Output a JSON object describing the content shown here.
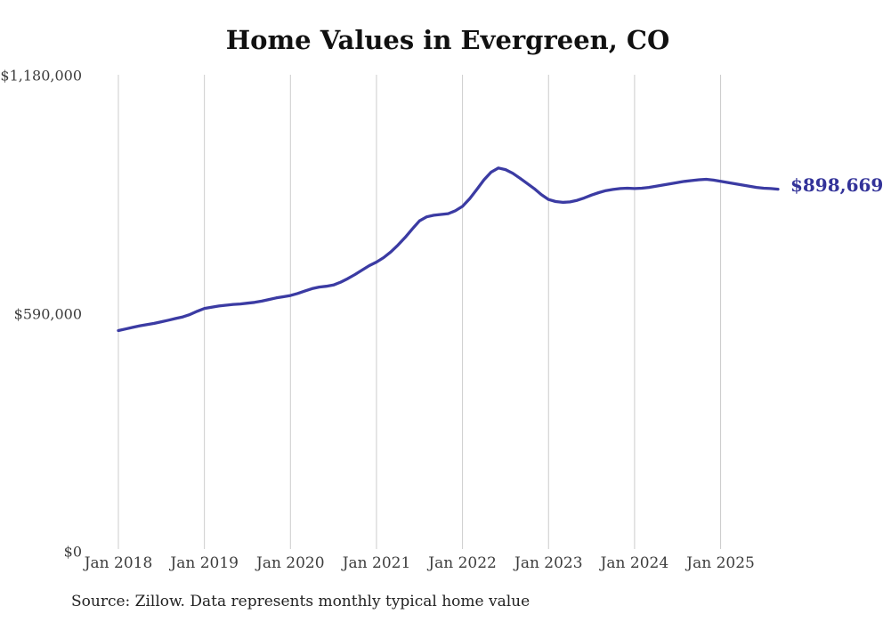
{
  "page": {
    "title": "Home Values in Evergreen, CO",
    "end_value_label": "$898,669",
    "source_note": "Source: Zillow. Data represents monthly typical home value"
  },
  "colors": {
    "line": "#3b3ba3",
    "end_label_text": "#333399",
    "gridline": "#cccccc",
    "title_text": "#111111",
    "axis_text": "#3d3d3d",
    "source_text": "#222222",
    "background": "#ffffff"
  },
  "chart_data": {
    "type": "line",
    "title": "Home Values in Evergreen, CO",
    "series_name": "Monthly typical home value",
    "xlabel": "",
    "ylabel": "",
    "ylim": [
      0,
      1180000
    ],
    "grid": "vertical-only",
    "legend": "none",
    "x_start_month": "2018-01",
    "x_end_month": "2025-09",
    "x_tick_labels": [
      "Jan 2018",
      "Jan 2019",
      "Jan 2020",
      "Jan 2021",
      "Jan 2022",
      "Jan 2023",
      "Jan 2024",
      "Jan 2025"
    ],
    "y_ticks": [
      {
        "label": "$1,180,000",
        "value": 1180000
      },
      {
        "label": "$590,000",
        "value": 590000
      },
      {
        "label": "$0",
        "value": 0
      }
    ],
    "values": [
      548000,
      552000,
      556000,
      560000,
      563000,
      566000,
      570000,
      574000,
      578000,
      582000,
      588000,
      596000,
      603000,
      606000,
      609000,
      611000,
      613000,
      614000,
      616000,
      618000,
      621000,
      625000,
      629000,
      632000,
      635000,
      640000,
      646000,
      652000,
      656000,
      658000,
      661000,
      668000,
      677000,
      687000,
      698000,
      709000,
      718000,
      729000,
      743000,
      760000,
      779000,
      800000,
      820000,
      830000,
      834000,
      836000,
      838000,
      845000,
      856000,
      875000,
      898000,
      922000,
      941000,
      951000,
      947000,
      938000,
      926000,
      913000,
      900000,
      885000,
      873000,
      868000,
      866000,
      867000,
      871000,
      877000,
      884000,
      890000,
      895000,
      898000,
      900000,
      901000,
      900000,
      901000,
      903000,
      906000,
      909000,
      912000,
      915000,
      918000,
      920000,
      922000,
      923000,
      921000,
      918000,
      915000,
      912000,
      909000,
      906000,
      903000,
      901000,
      900000,
      898669
    ],
    "last_value": 898669,
    "end_label": "$898,669"
  }
}
